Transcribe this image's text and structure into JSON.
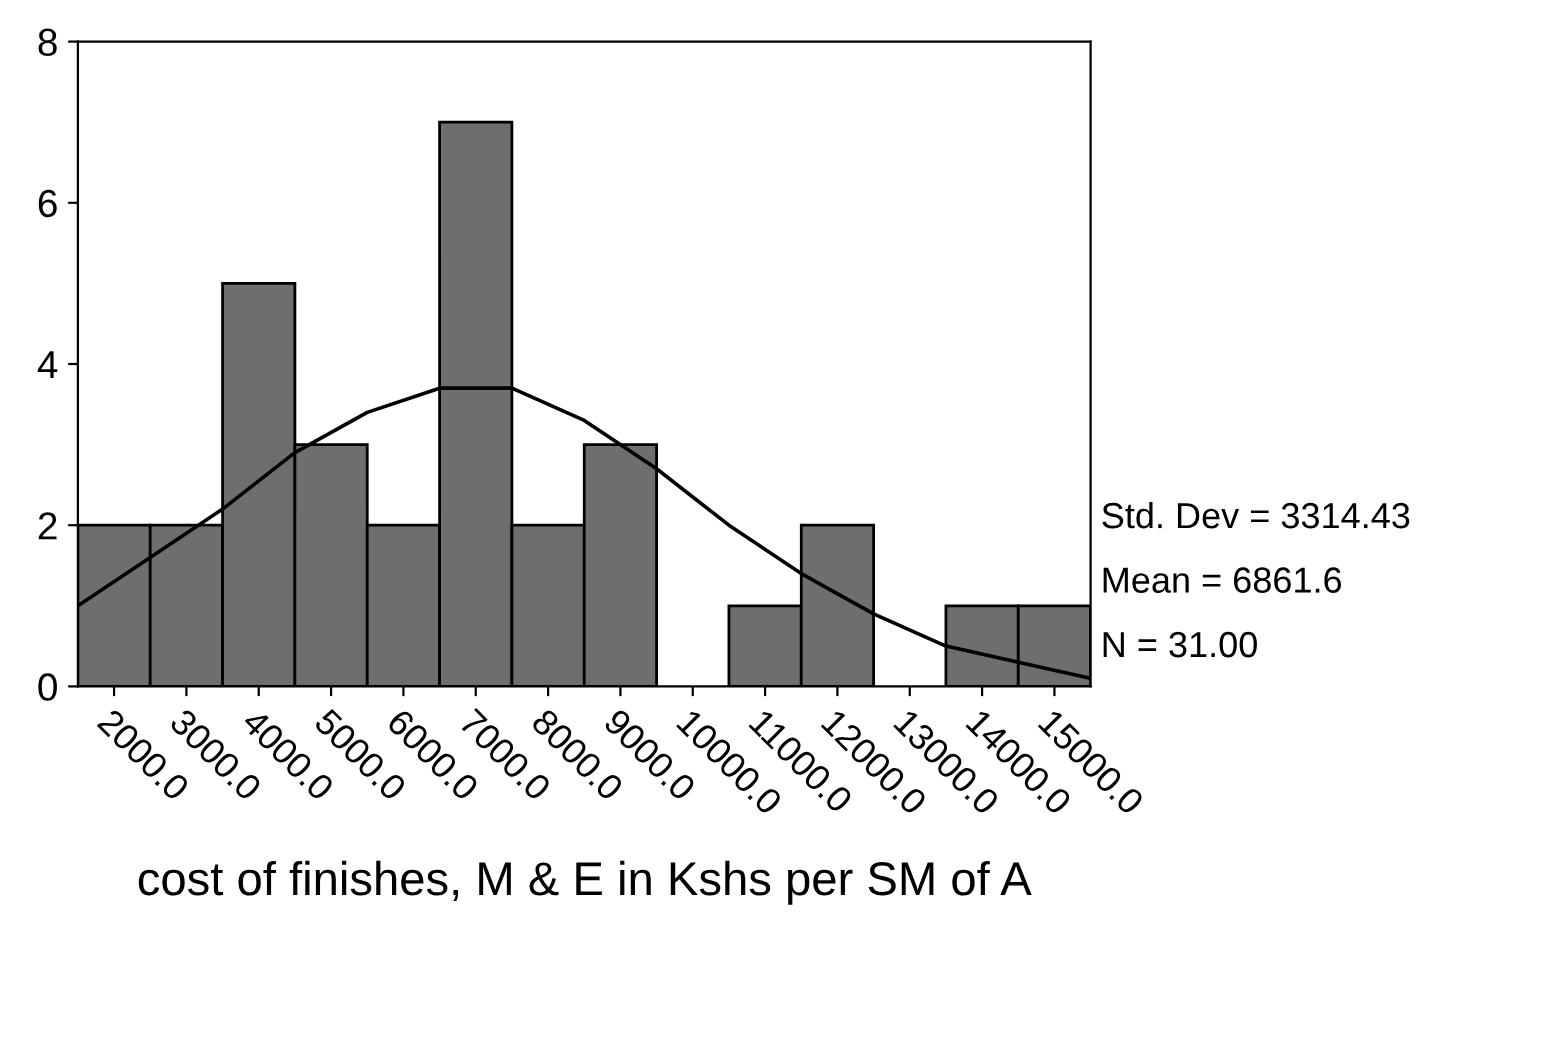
{
  "chart_data": {
    "type": "histogram",
    "xlabel": "cost of finishes, M & E in Kshs per SM of A",
    "bins": [
      1500,
      2500,
      3500,
      4500,
      5500,
      6500,
      7500,
      8500,
      9500,
      10500,
      11500,
      12500,
      13500,
      14500,
      15500
    ],
    "values": [
      2,
      2,
      5,
      3,
      2,
      7,
      2,
      3,
      0,
      1,
      2,
      0,
      1,
      1
    ],
    "color": "#6e6e6e",
    "series": [
      {
        "type": "line",
        "color": "#000000",
        "x": [
          1500,
          2500,
          3500,
          4500,
          5500,
          6500,
          7500,
          8500,
          9500,
          10500,
          11500,
          12500,
          13500,
          14500,
          15500
        ],
        "values": [
          1.0,
          1.6,
          2.2,
          2.9,
          3.4,
          3.7,
          3.7,
          3.3,
          2.7,
          2.0,
          1.4,
          0.9,
          0.5,
          0.3,
          0.1
        ]
      }
    ],
    "xlim": [
      1500,
      15500
    ],
    "xticks": [
      {
        "value": 2000,
        "label": "2000.0"
      },
      {
        "value": 3000,
        "label": "3000.0"
      },
      {
        "value": 4000,
        "label": "4000.0"
      },
      {
        "value": 5000,
        "label": "5000.0"
      },
      {
        "value": 6000,
        "label": "6000.0"
      },
      {
        "value": 7000,
        "label": "7000.0"
      },
      {
        "value": 8000,
        "label": "8000.0"
      },
      {
        "value": 9000,
        "label": "9000.0"
      },
      {
        "value": 10000,
        "label": "10000.0"
      },
      {
        "value": 11000,
        "label": "11000.0"
      },
      {
        "value": 12000,
        "label": "12000.0"
      },
      {
        "value": 13000,
        "label": "13000.0"
      },
      {
        "value": 14000,
        "label": "14000.0"
      },
      {
        "value": 15000,
        "label": "15000.0"
      }
    ],
    "ylim": [
      0,
      8
    ],
    "yticks": [
      0,
      2,
      4,
      6,
      8
    ],
    "annotations": [
      "Std. Dev = 3314.43",
      "Mean = 6861.6",
      "N = 31.00"
    ],
    "grid": false,
    "line_style": "solid"
  }
}
